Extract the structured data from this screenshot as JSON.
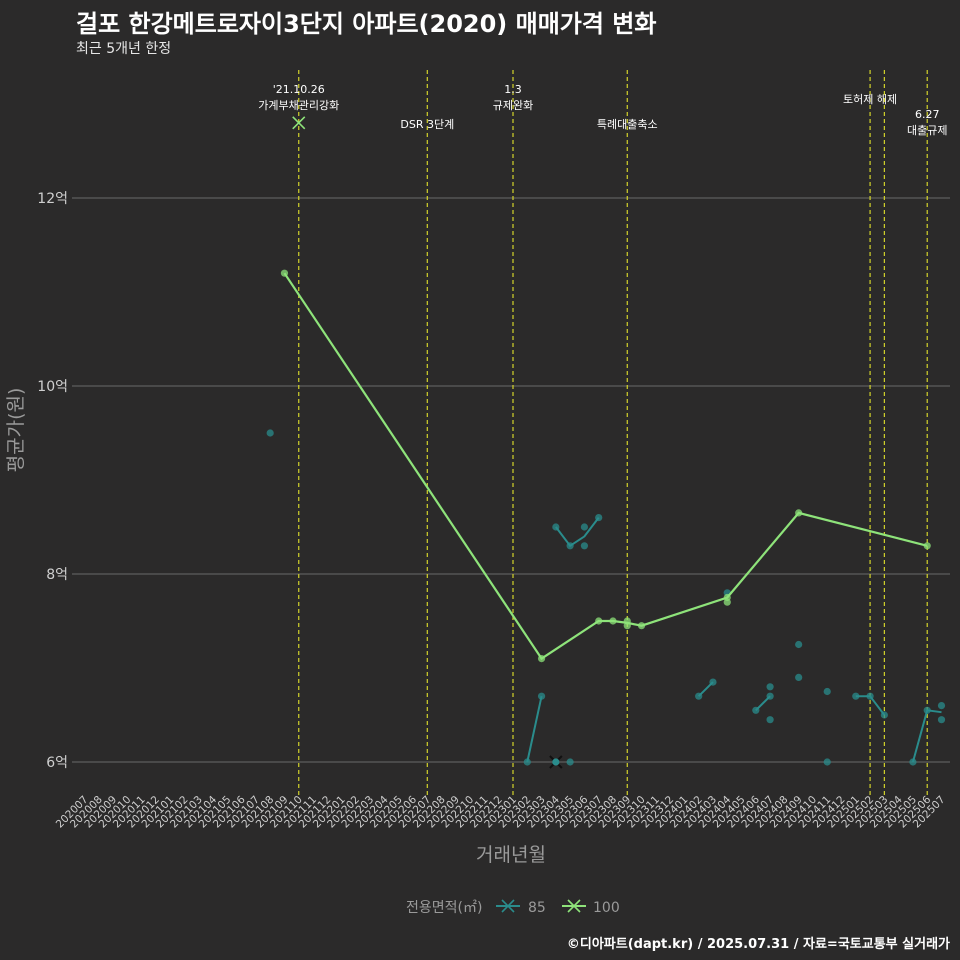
{
  "title": "걸포 한강메트로자이3단지 아파트(2020) 매매가격 변화",
  "subtitle": "최근 5개년 한정",
  "caption": "©디아파트(dapt.kr) / 2025.07.31 / 자료=국토교통부 실거래가",
  "colors": {
    "background": "#2b2a2a",
    "grid": "#5e5e5e",
    "vline": "#d4d42a",
    "series_85": "#2a8c8c",
    "series_100": "#8ee37a",
    "axis_text": "#cfcfcf",
    "axis_title": "#9a9a9a"
  },
  "chart_data": {
    "type": "line",
    "xlabel": "거래년월",
    "ylabel": "평균가(원)",
    "ylim": [
      5.7,
      13.5
    ],
    "yticks": [
      6,
      8,
      10,
      12
    ],
    "ytick_labels": [
      "6억",
      "8억",
      "10억",
      "12억"
    ],
    "categories": [
      "202007",
      "202008",
      "202009",
      "202010",
      "202011",
      "202012",
      "202101",
      "202102",
      "202103",
      "202104",
      "202105",
      "202106",
      "202107",
      "202108",
      "202109",
      "202110",
      "202111",
      "202112",
      "202201",
      "202202",
      "202203",
      "202204",
      "202205",
      "202206",
      "202207",
      "202208",
      "202209",
      "202210",
      "202211",
      "202212",
      "202301",
      "202302",
      "202303",
      "202304",
      "202305",
      "202306",
      "202307",
      "202308",
      "202309",
      "202310",
      "202311",
      "202312",
      "202401",
      "202402",
      "202403",
      "202404",
      "202405",
      "202406",
      "202407",
      "202408",
      "202409",
      "202410",
      "202411",
      "202412",
      "202501",
      "202502",
      "202503",
      "202504",
      "202505",
      "202506",
      "202507"
    ],
    "legend_title": "전용면적(㎡)",
    "series": [
      {
        "name": "85",
        "color": "#2a8c8c",
        "line_segments": [
          [
            [
              "202304",
              8.5
            ],
            [
              "202305",
              8.3
            ],
            [
              "202306",
              8.4
            ],
            [
              "202307",
              8.6
            ]
          ],
          [
            [
              "202302",
              6.0
            ],
            [
              "202303",
              6.7
            ]
          ],
          [
            [
              "202402",
              6.7
            ],
            [
              "202403",
              6.85
            ]
          ],
          [
            [
              "202406",
              6.55
            ],
            [
              "202407",
              6.7
            ]
          ],
          [
            [
              "202501",
              6.7
            ],
            [
              "202502",
              6.7
            ],
            [
              "202503",
              6.5
            ]
          ],
          [
            [
              "202505",
              6.0
            ],
            [
              "202506",
              6.55
            ],
            [
              "202507",
              6.53
            ]
          ]
        ],
        "points": [
          [
            "202108",
            9.5
          ],
          [
            "202304",
            8.5
          ],
          [
            "202305",
            8.3
          ],
          [
            "202306",
            8.5
          ],
          [
            "202306",
            8.3
          ],
          [
            "202307",
            8.6
          ],
          [
            "202302",
            6.0
          ],
          [
            "202303",
            6.7
          ],
          [
            "202305",
            6.0
          ],
          [
            "202402",
            6.7
          ],
          [
            "202403",
            6.85
          ],
          [
            "202404",
            7.8
          ],
          [
            "202406",
            6.55
          ],
          [
            "202407",
            6.7
          ],
          [
            "202407",
            6.8
          ],
          [
            "202407",
            6.45
          ],
          [
            "202409",
            7.25
          ],
          [
            "202409",
            6.9
          ],
          [
            "202411",
            6.75
          ],
          [
            "202411",
            6.0
          ],
          [
            "202501",
            6.7
          ],
          [
            "202502",
            6.7
          ],
          [
            "202503",
            6.5
          ],
          [
            "202505",
            6.0
          ],
          [
            "202506",
            6.55
          ],
          [
            "202507",
            6.6
          ],
          [
            "202507",
            6.45
          ]
        ],
        "highlight_points": [
          [
            "202304",
            6.0
          ]
        ]
      },
      {
        "name": "100",
        "color": "#8ee37a",
        "line": [
          [
            "202109",
            11.2
          ],
          [
            "202303",
            7.1
          ],
          [
            "202307",
            7.5
          ],
          [
            "202308",
            7.5
          ],
          [
            "202309",
            7.48
          ],
          [
            "202310",
            7.45
          ],
          [
            "202404",
            7.75
          ],
          [
            "202409",
            8.65
          ],
          [
            "202506",
            8.3
          ]
        ],
        "points": [
          [
            "202109",
            11.2
          ],
          [
            "202303",
            7.1
          ],
          [
            "202307",
            7.5
          ],
          [
            "202308",
            7.5
          ],
          [
            "202309",
            7.5
          ],
          [
            "202309",
            7.45
          ],
          [
            "202310",
            7.45
          ],
          [
            "202404",
            7.7
          ],
          [
            "202404",
            7.75
          ],
          [
            "202409",
            8.65
          ],
          [
            "202506",
            8.3
          ]
        ],
        "highlight_points": [
          [
            "202110",
            12.8
          ]
        ]
      }
    ],
    "events": [
      {
        "x": "202110",
        "lines": [
          "'21.10.26",
          "가계부채관리강화"
        ],
        "level": 0
      },
      {
        "x": "202207",
        "lines": [
          "DSR 3단계"
        ],
        "level": 2
      },
      {
        "x": "202301",
        "lines": [
          "1.3",
          "규제완화"
        ],
        "level": 0
      },
      {
        "x": "202309",
        "lines": [
          "특례대출축소"
        ],
        "level": 2
      },
      {
        "x": "202502",
        "lines": [
          "토허제 해제"
        ],
        "level": 1
      },
      {
        "x": "202503",
        "lines": [],
        "level": 1
      },
      {
        "x": "202506",
        "lines": [
          "6.27",
          "대출규제"
        ],
        "level": 3
      }
    ]
  }
}
